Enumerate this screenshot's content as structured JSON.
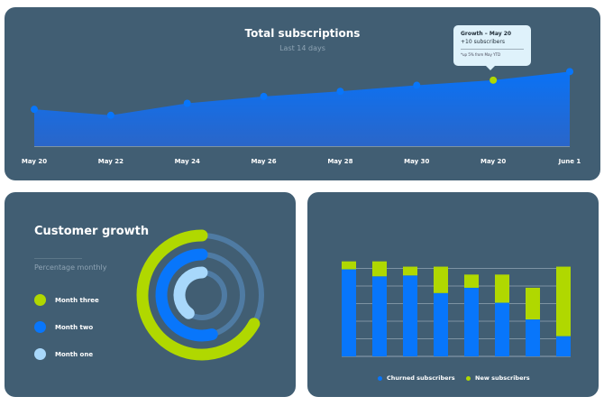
{
  "colors": {
    "card": "#415e73",
    "blue": "#0876fb",
    "green": "#b0d800",
    "light_blue": "#a8d8fb",
    "track": "#4f7ba3"
  },
  "chart_data": [
    {
      "type": "area",
      "title": "Total subscriptions",
      "subtitle": "Last 14 days",
      "categories": [
        "May 20",
        "May 22",
        "May 24",
        "May 26",
        "May 28",
        "May 30",
        "May 20",
        "June 1"
      ],
      "values": [
        43,
        36,
        50,
        58,
        64,
        71,
        77,
        87
      ],
      "grid": false,
      "tooltip": {
        "index": 6,
        "title": "Growth – May 20",
        "value": "+10 subscribers",
        "note": "*up 5% from May YTD"
      }
    },
    {
      "type": "radial",
      "title": "Customer growth",
      "subtitle": "Percentage monthly",
      "series": [
        {
          "name": "Month three",
          "value": 67,
          "color": "#b0d800"
        },
        {
          "name": "Month two",
          "value": 54,
          "color": "#0876fb"
        },
        {
          "name": "Month one",
          "value": 40,
          "color": "#a8d8fb"
        }
      ]
    },
    {
      "type": "bar",
      "stacked": true,
      "grid": true,
      "series": [
        {
          "name": "Churned subscribers",
          "values": [
            99,
            91,
            92,
            72,
            78,
            61,
            42,
            23
          ],
          "color": "#0876fb"
        },
        {
          "name": "New subscribers",
          "values": [
            9,
            17,
            10,
            30,
            15,
            32,
            36,
            79
          ],
          "color": "#b0d800"
        }
      ],
      "ylim": [
        0,
        120
      ]
    }
  ]
}
